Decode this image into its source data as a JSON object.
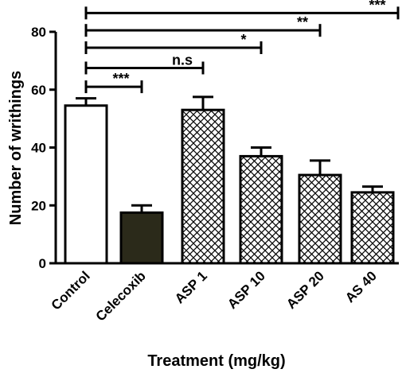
{
  "chart_data": {
    "type": "bar",
    "title": "",
    "xlabel": "Treatment (mg/kg)",
    "ylabel": "Number of writhings",
    "ylim": [
      0,
      80
    ],
    "yticks": [
      "0",
      "20",
      "40",
      "60",
      "80"
    ],
    "grid": false,
    "categories": [
      "Control",
      "Celecoxib",
      "ASP 1",
      "ASP 10",
      "ASP 20",
      "AS 40"
    ],
    "values": [
      54.5,
      17.5,
      53,
      37,
      30.5,
      24.5
    ],
    "errors": [
      2.5,
      2.5,
      4.5,
      3,
      5,
      2
    ],
    "fills": [
      "white",
      "dark",
      "crosshatch",
      "crosshatch",
      "crosshatch",
      "crosshatch"
    ],
    "significance": [
      {
        "from": "Control",
        "to": "Celecoxib",
        "label": "***",
        "y": 61
      },
      {
        "from": "Control",
        "to": "ASP 1",
        "label": "n.s",
        "y": 67.5
      },
      {
        "from": "Control",
        "to": "ASP 10",
        "label": "*",
        "y": 74.5
      },
      {
        "from": "Control",
        "to": "ASP 20",
        "label": "**",
        "y": 80.5
      },
      {
        "from": "Control",
        "to": "AS 40",
        "label": "***",
        "y": 86.5
      }
    ]
  },
  "colors": {
    "dark_fill": "#2b2a1a",
    "stroke": "#000000",
    "background": "#ffffff"
  }
}
